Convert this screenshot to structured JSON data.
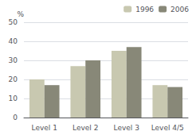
{
  "chart_data": {
    "type": "bar",
    "categories": [
      "Level 1",
      "Level 2",
      "Level 3",
      "Level 4/5"
    ],
    "series": [
      {
        "name": "1996",
        "color": "#c8c8b0",
        "values": [
          20,
          27,
          35,
          17
        ]
      },
      {
        "name": "2006",
        "color": "#888878",
        "values": [
          17,
          30,
          37,
          16
        ]
      }
    ],
    "ylabel": "%",
    "ylim": [
      0,
      50
    ],
    "yticks": [
      0,
      10,
      20,
      30,
      40,
      50
    ],
    "grid": true,
    "legend": "upper right"
  }
}
